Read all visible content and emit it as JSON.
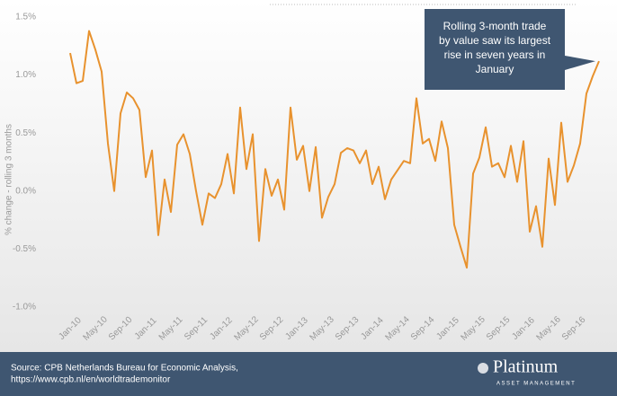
{
  "chart_data": {
    "type": "line",
    "y_label": "% change - rolling 3 months",
    "annotation": [
      "Rolling 3-month trade",
      "by value saw its largest",
      "rise in seven years in",
      "January"
    ],
    "categories": [
      "Jan-10",
      null,
      null,
      null,
      "May-10",
      null,
      null,
      null,
      "Sep-10",
      null,
      null,
      null,
      "Jan-11",
      null,
      null,
      null,
      "May-11",
      null,
      null,
      null,
      "Sep-11",
      null,
      null,
      null,
      "Jan-12",
      null,
      null,
      null,
      "May-12",
      null,
      null,
      null,
      "Sep-12",
      null,
      null,
      null,
      "Jan-13",
      null,
      null,
      null,
      "May-13",
      null,
      null,
      null,
      "Sep-13",
      null,
      null,
      null,
      "Jan-14",
      null,
      null,
      null,
      "May-14",
      null,
      null,
      null,
      "Sep-14",
      null,
      null,
      null,
      "Jan-15",
      null,
      null,
      null,
      "May-15",
      null,
      null,
      null,
      "Sep-15",
      null,
      null,
      null,
      "Jan-16",
      null,
      null,
      null,
      "May-16",
      null,
      null,
      null,
      "Sep-16",
      null,
      null,
      null,
      null
    ],
    "values": [
      1.19,
      0.93,
      0.95,
      1.38,
      1.22,
      1.03,
      0.41,
      0.0,
      0.67,
      0.85,
      0.8,
      0.7,
      0.12,
      0.35,
      -0.38,
      0.1,
      -0.18,
      0.4,
      0.49,
      0.32,
      0.0,
      -0.29,
      -0.02,
      -0.06,
      0.06,
      0.32,
      -0.02,
      0.72,
      0.19,
      0.49,
      -0.43,
      0.19,
      -0.04,
      0.1,
      -0.16,
      0.72,
      0.27,
      0.39,
      0.0,
      0.38,
      -0.23,
      -0.05,
      0.06,
      0.33,
      0.37,
      0.35,
      0.24,
      0.35,
      0.06,
      0.21,
      -0.07,
      0.1,
      0.18,
      0.26,
      0.24,
      0.8,
      0.41,
      0.45,
      0.26,
      0.6,
      0.37,
      -0.29,
      -0.48,
      -0.66,
      0.15,
      0.29,
      0.55,
      0.21,
      0.24,
      0.12,
      0.39,
      0.08,
      0.43,
      -0.35,
      -0.13,
      -0.48,
      0.28,
      -0.12,
      0.59,
      0.08,
      0.22,
      0.41,
      0.84,
      0.99,
      1.12
    ],
    "color": "#e8922e",
    "ylim": [
      -1.0,
      1.5
    ],
    "yticks": [
      {
        "value": -1.0,
        "label": "-1.0%"
      },
      {
        "value": -0.5,
        "label": "-0.5%"
      },
      {
        "value": 0,
        "label": "0.0%"
      },
      {
        "value": 0.5,
        "label": "0.5%"
      },
      {
        "value": 1.0,
        "label": "1.0%"
      },
      {
        "value": 1.5,
        "label": "1.5%"
      }
    ]
  },
  "footer": {
    "source": [
      "Source:  CPB Netherlands Bureau for Economic Analysis,",
      "https://www.cpb.nl/en/worldtrademonitor"
    ],
    "logo": "Platinum",
    "logo_sub": "ASSET MANAGEMENT"
  }
}
